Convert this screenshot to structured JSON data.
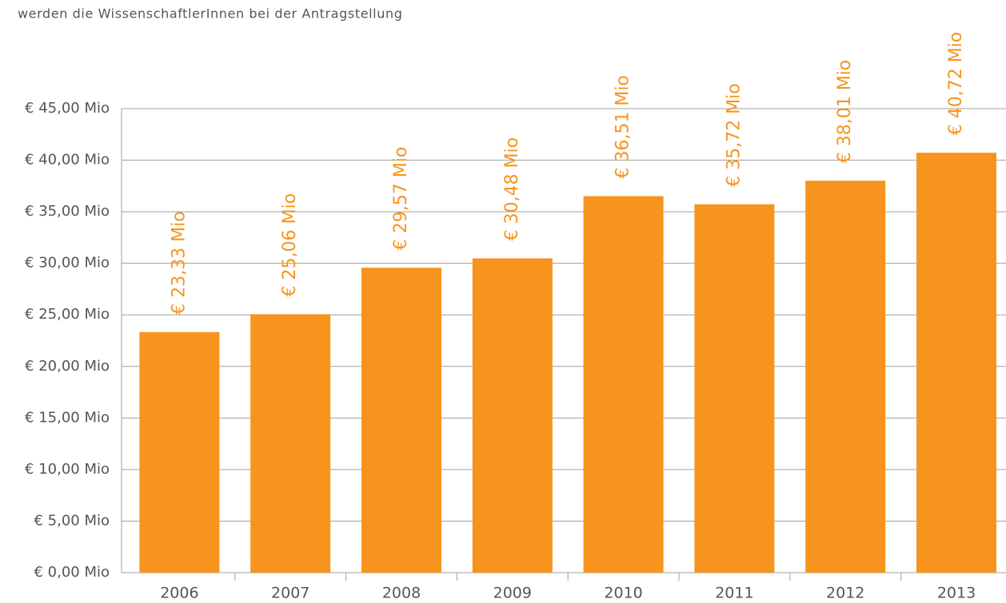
{
  "intro_text": "werden die WissenschaftlerInnen bei der Antragstellung",
  "chart_data": {
    "type": "bar",
    "categories": [
      "2006",
      "2007",
      "2008",
      "2009",
      "2010",
      "2011",
      "2012",
      "2013"
    ],
    "values": [
      23.33,
      25.06,
      29.57,
      30.48,
      36.51,
      35.72,
      38.01,
      40.72
    ],
    "value_labels": [
      "€ 23,33 Mio",
      "€ 25,06 Mio",
      "€ 29,57 Mio",
      "€ 30,48 Mio",
      "€ 36,51 Mio",
      "€ 35,72 Mio",
      "€ 38,01 Mio",
      "€ 40,72 Mio"
    ],
    "color": "#f7941d",
    "ylim": [
      0,
      45
    ],
    "yticks": [
      {
        "value": 0,
        "label": "€ 0,00 Mio"
      },
      {
        "value": 5,
        "label": "€ 5,00 Mio"
      },
      {
        "value": 10,
        "label": "€ 10,00 Mio"
      },
      {
        "value": 15,
        "label": "€ 15,00 Mio"
      },
      {
        "value": 20,
        "label": "€ 20,00 Mio"
      },
      {
        "value": 25,
        "label": "€ 25,00 Mio"
      },
      {
        "value": 30,
        "label": "€ 30,00 Mio"
      },
      {
        "value": 35,
        "label": "€ 35,00 Mio"
      },
      {
        "value": 40,
        "label": "€ 40,00 Mio"
      },
      {
        "value": 45,
        "label": "€ 45,00 Mio"
      }
    ],
    "grid": true
  }
}
